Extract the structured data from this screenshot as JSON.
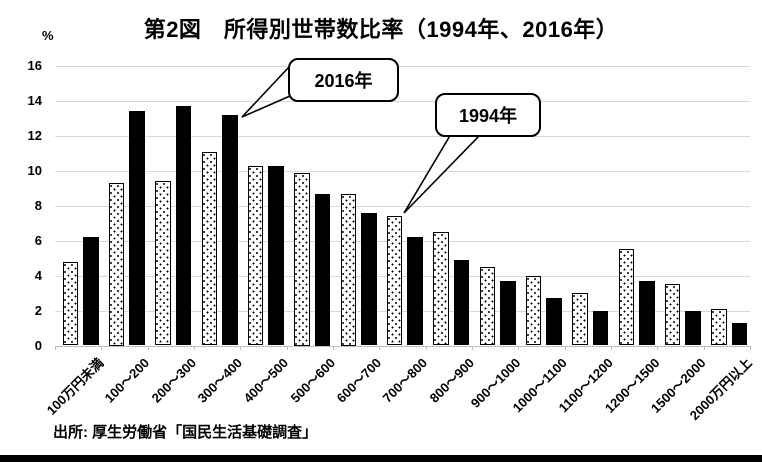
{
  "title": "第2図　所得別世帯数比率（1994年、2016年）",
  "y_axis": {
    "unit": "%",
    "min": 0,
    "max": 16,
    "step": 2,
    "tick_labels": [
      "0",
      "2",
      "4",
      "6",
      "8",
      "10",
      "12",
      "14",
      "16"
    ]
  },
  "callouts": [
    {
      "label": "2016年",
      "points_to": "solid black bar of 300～400"
    },
    {
      "label": "1994年",
      "points_to": "dotted bar of 700～800"
    }
  ],
  "source": "出所: 厚生労働省「国民生活基礎調査」",
  "colors": {
    "background": "#ffffff",
    "bar_2016_fill": "#000000",
    "bar_1994_fill": "#ffffff",
    "bar_1994_dots": "#000000",
    "bar_border": "#000000",
    "gridline": "#d9d9d9",
    "axis_line": "#bfbfbf",
    "text": "#000000",
    "bottom_strip": "#000000"
  },
  "chart_data": {
    "type": "bar",
    "title": "第2図　所得別世帯数比率（1994年、2016年）",
    "categories": [
      "100万円未満",
      "100～200",
      "200～300",
      "300～400",
      "400～500",
      "500～600",
      "600～700",
      "700～800",
      "800～900",
      "900～1000",
      "1000～1100",
      "1100～1200",
      "1200～1500",
      "1500～2000",
      "2000万円以上"
    ],
    "series": [
      {
        "name": "1994年",
        "style": "white-dotted-pattern",
        "values": [
          4.8,
          9.3,
          9.4,
          11.1,
          10.3,
          9.9,
          8.7,
          7.4,
          6.5,
          4.5,
          4.0,
          3.0,
          5.5,
          3.5,
          2.1
        ]
      },
      {
        "name": "2016年",
        "style": "solid-black",
        "values": [
          6.2,
          13.4,
          13.7,
          13.2,
          10.3,
          8.7,
          7.6,
          6.2,
          4.9,
          3.7,
          2.7,
          2.0,
          3.7,
          2.0,
          1.3
        ]
      }
    ],
    "xlabel": "",
    "ylabel": "%",
    "ylim": [
      0,
      16
    ],
    "ytick_step": 2,
    "grid": true,
    "legend": "none（系列は吹き出し注記「2016年」「1994年」で表示）"
  }
}
